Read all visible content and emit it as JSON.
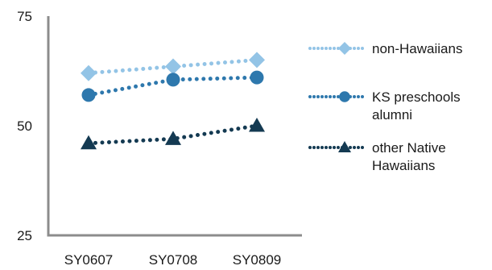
{
  "chart_data": {
    "type": "line",
    "x": [
      "SY0607",
      "SY0708",
      "SY0809"
    ],
    "ylim": [
      25,
      75
    ],
    "yticks": [
      25,
      50,
      75
    ],
    "grid": false,
    "legend_position": "right",
    "series": [
      {
        "name": "non-Hawaiians",
        "label_lines": [
          "non-Hawaiians"
        ],
        "values": [
          62,
          63.5,
          65
        ],
        "color": "#93c4e6",
        "marker": "diamond"
      },
      {
        "name": "KS preschools alumni",
        "label_lines": [
          "KS preschools",
          "alumni"
        ],
        "values": [
          57,
          60.5,
          61
        ],
        "color": "#2e78ad",
        "marker": "circle"
      },
      {
        "name": "other Native Hawaiians",
        "label_lines": [
          "other Native",
          "Hawaiians"
        ],
        "values": [
          46,
          47,
          50
        ],
        "color": "#143a52",
        "marker": "triangle"
      }
    ]
  }
}
